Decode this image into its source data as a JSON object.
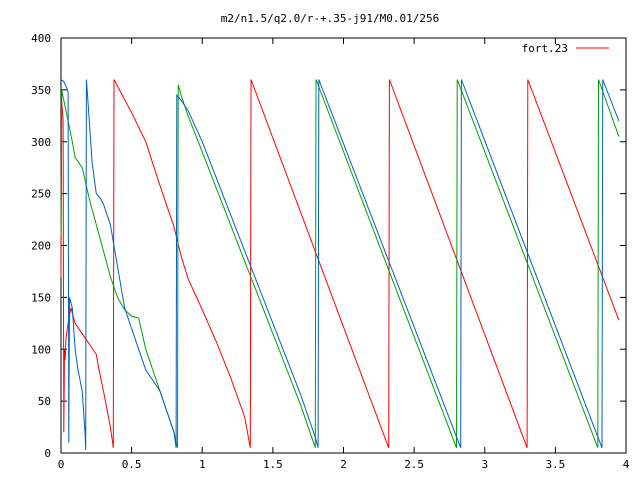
{
  "chart_data": {
    "type": "line",
    "title": "m2/n1.5/q2.0/r-+.35-j91/M0.01/256",
    "xlabel": "",
    "ylabel": "",
    "xlim": [
      0,
      4
    ],
    "ylim": [
      0,
      400
    ],
    "x_ticks": [
      "0",
      "0.5",
      "1",
      "1.5",
      "2",
      "2.5",
      "3",
      "3.5",
      "4"
    ],
    "y_ticks": [
      "0",
      "50",
      "100",
      "150",
      "200",
      "250",
      "300",
      "350",
      "400"
    ],
    "grid": false,
    "legend_position": "top-right",
    "series": [
      {
        "name": "fort.23",
        "color": "#ff0000",
        "points": [
          [
            0.0,
            170
          ],
          [
            0.005,
            340
          ],
          [
            0.01,
            330
          ],
          [
            0.015,
            320
          ],
          [
            0.02,
            20
          ],
          [
            0.025,
            100
          ],
          [
            0.03,
            90
          ],
          [
            0.035,
            110
          ],
          [
            0.05,
            125
          ],
          [
            0.07,
            140
          ],
          [
            0.1,
            125
          ],
          [
            0.15,
            115
          ],
          [
            0.2,
            105
          ],
          [
            0.25,
            95
          ],
          [
            0.27,
            80
          ],
          [
            0.3,
            60
          ],
          [
            0.35,
            25
          ],
          [
            0.37,
            5
          ],
          [
            0.375,
            360
          ],
          [
            0.5,
            328
          ],
          [
            0.6,
            300
          ],
          [
            0.7,
            258
          ],
          [
            0.8,
            218
          ],
          [
            0.85,
            190
          ],
          [
            0.9,
            168
          ],
          [
            1.0,
            138
          ],
          [
            1.1,
            107
          ],
          [
            1.2,
            73
          ],
          [
            1.3,
            35
          ],
          [
            1.34,
            5
          ],
          [
            1.345,
            360
          ],
          [
            2.32,
            5
          ],
          [
            2.325,
            360
          ],
          [
            3.3,
            5
          ],
          [
            3.305,
            360
          ],
          [
            3.95,
            128
          ]
        ]
      },
      {
        "name": "",
        "color": "#00a000",
        "points": [
          [
            0.0,
            210
          ],
          [
            0.005,
            350
          ],
          [
            0.02,
            340
          ],
          [
            0.05,
            320
          ],
          [
            0.08,
            300
          ],
          [
            0.1,
            285
          ],
          [
            0.15,
            275
          ],
          [
            0.2,
            245
          ],
          [
            0.25,
            220
          ],
          [
            0.3,
            195
          ],
          [
            0.35,
            170
          ],
          [
            0.4,
            150
          ],
          [
            0.45,
            138
          ],
          [
            0.5,
            132
          ],
          [
            0.55,
            130
          ],
          [
            0.6,
            100
          ],
          [
            0.65,
            80
          ],
          [
            0.7,
            60
          ],
          [
            0.75,
            40
          ],
          [
            0.8,
            20
          ],
          [
            0.825,
            5
          ],
          [
            0.83,
            355
          ],
          [
            0.85,
            345
          ],
          [
            0.9,
            325
          ],
          [
            1.0,
            290
          ],
          [
            1.1,
            255
          ],
          [
            1.2,
            220
          ],
          [
            1.3,
            185
          ],
          [
            1.4,
            150
          ],
          [
            1.5,
            115
          ],
          [
            1.6,
            80
          ],
          [
            1.7,
            45
          ],
          [
            1.8,
            5
          ],
          [
            1.805,
            360
          ],
          [
            2.8,
            5
          ],
          [
            2.805,
            360
          ],
          [
            3.8,
            5
          ],
          [
            3.805,
            360
          ],
          [
            3.95,
            305
          ]
        ]
      },
      {
        "name": "",
        "color": "#0060c0",
        "points": [
          [
            0.0,
            360
          ],
          [
            0.02,
            358
          ],
          [
            0.04,
            352
          ],
          [
            0.05,
            348
          ],
          [
            0.055,
            10
          ],
          [
            0.06,
            150
          ],
          [
            0.07,
            145
          ],
          [
            0.08,
            140
          ],
          [
            0.1,
            100
          ],
          [
            0.12,
            80
          ],
          [
            0.15,
            60
          ],
          [
            0.17,
            20
          ],
          [
            0.175,
            3
          ],
          [
            0.18,
            360
          ],
          [
            0.2,
            320
          ],
          [
            0.22,
            280
          ],
          [
            0.25,
            250
          ],
          [
            0.28,
            245
          ],
          [
            0.3,
            240
          ],
          [
            0.35,
            220
          ],
          [
            0.4,
            180
          ],
          [
            0.45,
            140
          ],
          [
            0.5,
            120
          ],
          [
            0.55,
            100
          ],
          [
            0.6,
            80
          ],
          [
            0.65,
            70
          ],
          [
            0.7,
            60
          ],
          [
            0.75,
            40
          ],
          [
            0.8,
            20
          ],
          [
            0.815,
            5
          ],
          [
            0.82,
            345
          ],
          [
            0.85,
            340
          ],
          [
            0.9,
            330
          ],
          [
            1.0,
            300
          ],
          [
            1.1,
            265
          ],
          [
            1.2,
            230
          ],
          [
            1.3,
            195
          ],
          [
            1.4,
            160
          ],
          [
            1.5,
            125
          ],
          [
            1.6,
            90
          ],
          [
            1.7,
            55
          ],
          [
            1.8,
            15
          ],
          [
            1.82,
            5
          ],
          [
            1.825,
            360
          ],
          [
            2.83,
            5
          ],
          [
            2.835,
            360
          ],
          [
            3.83,
            5
          ],
          [
            3.835,
            360
          ],
          [
            3.95,
            320
          ]
        ]
      }
    ]
  }
}
